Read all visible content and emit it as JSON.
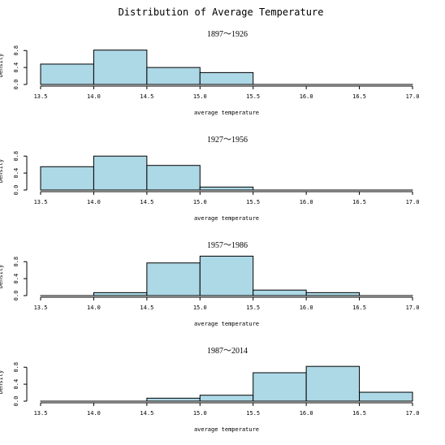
{
  "chart_data": {
    "type": "histogram",
    "title": "Distribution of Average Temperature",
    "panels": [
      {
        "subtitle": "1897〜1926",
        "xlabel": "average temperature",
        "ylabel": "Density",
        "bin_edges": [
          13.5,
          14.0,
          14.5,
          15.0,
          15.5,
          16.0,
          16.5,
          17.0
        ],
        "values": [
          0.48,
          0.81,
          0.4,
          0.28,
          0.0,
          0.0,
          0.0
        ],
        "xlim": [
          13.5,
          17.0
        ],
        "ylim": [
          0,
          0.9
        ],
        "xticks": [
          "13.5",
          "14.0",
          "14.5",
          "15.0",
          "15.5",
          "16.0",
          "16.5",
          "17.0"
        ],
        "yticks": [
          "0.0",
          "0.4",
          "0.8"
        ]
      },
      {
        "subtitle": "1927〜1956",
        "xlabel": "average temperature",
        "ylabel": "Density",
        "bin_edges": [
          13.5,
          14.0,
          14.5,
          15.0,
          15.5,
          16.0,
          16.5,
          17.0
        ],
        "values": [
          0.55,
          0.8,
          0.58,
          0.07,
          0.0,
          0.0,
          0.0
        ],
        "xlim": [
          13.5,
          17.0
        ],
        "ylim": [
          0,
          0.9
        ],
        "xticks": [
          "13.5",
          "14.0",
          "14.5",
          "15.0",
          "15.5",
          "16.0",
          "16.5",
          "17.0"
        ],
        "yticks": [
          "0.0",
          "0.4",
          "0.8"
        ]
      },
      {
        "subtitle": "1957〜1986",
        "xlabel": "average temperature",
        "ylabel": "Density",
        "bin_edges": [
          13.5,
          14.0,
          14.5,
          15.0,
          15.5,
          16.0,
          16.5,
          17.0
        ],
        "values": [
          0.0,
          0.07,
          0.77,
          0.93,
          0.13,
          0.07,
          0.0
        ],
        "xlim": [
          13.5,
          17.0
        ],
        "ylim": [
          0,
          0.9
        ],
        "xticks": [
          "13.5",
          "14.0",
          "14.5",
          "15.0",
          "15.5",
          "16.0",
          "16.5",
          "17.0"
        ],
        "yticks": [
          "0.0",
          "0.4",
          "0.8"
        ]
      },
      {
        "subtitle": "1987〜2014",
        "xlabel": "average temperature",
        "ylabel": "Density",
        "bin_edges": [
          13.5,
          14.0,
          14.5,
          15.0,
          15.5,
          16.0,
          16.5,
          17.0
        ],
        "values": [
          0.0,
          0.0,
          0.07,
          0.14,
          0.67,
          0.82,
          0.21
        ],
        "xlim": [
          13.5,
          17.0
        ],
        "ylim": [
          0,
          0.9
        ],
        "xticks": [
          "13.5",
          "14.0",
          "14.5",
          "15.0",
          "15.5",
          "16.0",
          "16.5",
          "17.0"
        ],
        "yticks": [
          "0.0",
          "0.4",
          "0.8"
        ]
      }
    ],
    "bar_fill": "#add8e6",
    "bar_stroke": "#000000"
  }
}
